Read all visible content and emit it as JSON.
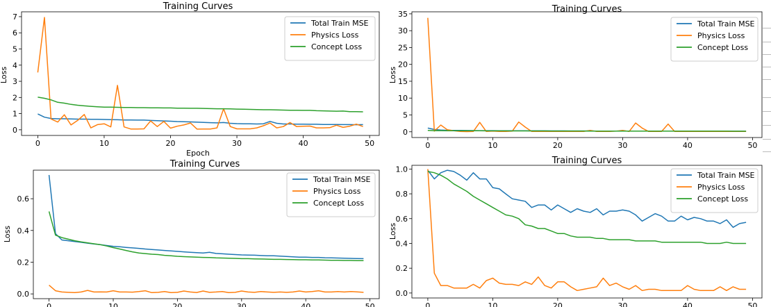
{
  "colors": {
    "train": "#1f77b4",
    "physics": "#ff7f0e",
    "concept": "#2ca02c"
  },
  "chart_data": [
    {
      "type": "line",
      "title": "Training Curves",
      "xlabel": "Epoch",
      "ylabel": "Loss",
      "xlim": [
        -2.45,
        51.45
      ],
      "ylim": [
        -0.35,
        7.3
      ],
      "xticks": [
        0,
        10,
        20,
        30,
        40,
        50
      ],
      "yticks": [
        0,
        1,
        2,
        3,
        4,
        5,
        6,
        7
      ],
      "legend": "top-right",
      "x": [
        0,
        1,
        2,
        3,
        4,
        5,
        6,
        7,
        8,
        9,
        10,
        11,
        12,
        13,
        14,
        15,
        16,
        17,
        18,
        19,
        20,
        21,
        22,
        23,
        24,
        25,
        26,
        27,
        28,
        29,
        30,
        31,
        32,
        33,
        34,
        35,
        36,
        37,
        38,
        39,
        40,
        41,
        42,
        43,
        44,
        45,
        46,
        47,
        48,
        49
      ],
      "series": [
        {
          "name": "Total Train MSE",
          "values": [
            0.98,
            0.78,
            0.7,
            0.68,
            0.68,
            0.67,
            0.66,
            0.66,
            0.65,
            0.65,
            0.64,
            0.63,
            0.62,
            0.61,
            0.61,
            0.6,
            0.6,
            0.58,
            0.56,
            0.55,
            0.53,
            0.51,
            0.5,
            0.49,
            0.47,
            0.46,
            0.44,
            0.43,
            0.45,
            0.4,
            0.38,
            0.37,
            0.37,
            0.36,
            0.37,
            0.52,
            0.4,
            0.36,
            0.36,
            0.35,
            0.35,
            0.34,
            0.34,
            0.33,
            0.33,
            0.33,
            0.32,
            0.32,
            0.31,
            0.32
          ]
        },
        {
          "name": "Physics Loss",
          "values": [
            3.55,
            6.95,
            0.67,
            0.48,
            0.93,
            0.3,
            0.58,
            0.95,
            0.12,
            0.32,
            0.37,
            0.18,
            2.75,
            0.18,
            0.05,
            0.05,
            0.06,
            0.55,
            0.2,
            0.52,
            0.1,
            0.22,
            0.3,
            0.42,
            0.04,
            0.05,
            0.05,
            0.12,
            1.3,
            0.2,
            0.06,
            0.06,
            0.06,
            0.12,
            0.25,
            0.42,
            0.12,
            0.2,
            0.45,
            0.2,
            0.22,
            0.23,
            0.12,
            0.12,
            0.13,
            0.28,
            0.15,
            0.22,
            0.35,
            0.2
          ]
        },
        {
          "name": "Concept Loss",
          "values": [
            2.02,
            1.95,
            1.85,
            1.7,
            1.65,
            1.57,
            1.52,
            1.48,
            1.45,
            1.42,
            1.4,
            1.4,
            1.39,
            1.38,
            1.38,
            1.37,
            1.37,
            1.36,
            1.36,
            1.35,
            1.35,
            1.34,
            1.34,
            1.33,
            1.33,
            1.32,
            1.31,
            1.3,
            1.3,
            1.29,
            1.28,
            1.27,
            1.26,
            1.25,
            1.24,
            1.24,
            1.23,
            1.22,
            1.21,
            1.21,
            1.2,
            1.2,
            1.18,
            1.17,
            1.16,
            1.15,
            1.16,
            1.12,
            1.12,
            1.11
          ]
        }
      ]
    },
    {
      "type": "line",
      "title": "Training Curves",
      "xlabel": "",
      "ylabel": "Loss",
      "xlim": [
        -2.45,
        51.45
      ],
      "ylim": [
        -1.7,
        35.6
      ],
      "xticks": [
        0,
        10,
        20,
        30,
        40,
        50
      ],
      "yticks": [
        0,
        5,
        10,
        15,
        20,
        25,
        30,
        35
      ],
      "legend": "top-right",
      "x": [
        0,
        1,
        2,
        3,
        4,
        5,
        6,
        7,
        8,
        9,
        10,
        11,
        12,
        13,
        14,
        15,
        16,
        17,
        18,
        19,
        20,
        21,
        22,
        23,
        24,
        25,
        26,
        27,
        28,
        29,
        30,
        31,
        32,
        33,
        34,
        35,
        36,
        37,
        38,
        39,
        40,
        41,
        42,
        43,
        44,
        45,
        46,
        47,
        48,
        49
      ],
      "series": [
        {
          "name": "Total Train MSE",
          "values": [
            1.1,
            0.7,
            0.5,
            0.45,
            0.42,
            0.4,
            0.38,
            0.36,
            0.35,
            0.34,
            0.33,
            0.32,
            0.31,
            0.3,
            0.3,
            0.29,
            0.28,
            0.27,
            0.27,
            0.26,
            0.25,
            0.25,
            0.24,
            0.24,
            0.23,
            0.23,
            0.22,
            0.22,
            0.21,
            0.21,
            0.21,
            0.2,
            0.2,
            0.2,
            0.2,
            0.19,
            0.19,
            0.19,
            0.19,
            0.18,
            0.18,
            0.18,
            0.18,
            0.18,
            0.17,
            0.17,
            0.17,
            0.17,
            0.17,
            0.17
          ]
        },
        {
          "name": "Physics Loss",
          "values": [
            33.8,
            0.2,
            2.0,
            0.6,
            0.3,
            0.1,
            0.05,
            0.1,
            2.8,
            0.1,
            0.2,
            0.1,
            0.1,
            0.2,
            2.9,
            1.4,
            0.1,
            0.1,
            0.1,
            0.1,
            0.1,
            0.1,
            0.1,
            0.1,
            0.1,
            0.4,
            0.1,
            0.1,
            0.1,
            0.2,
            0.4,
            0.1,
            2.6,
            1.1,
            0.1,
            0.1,
            0.1,
            2.3,
            0.1,
            0.1,
            0.1,
            0.1,
            0.1,
            0.1,
            0.1,
            0.1,
            0.1,
            0.1,
            0.1,
            0.1
          ]
        },
        {
          "name": "Concept Loss",
          "values": [
            0.4,
            0.35,
            0.33,
            0.32,
            0.31,
            0.3,
            0.3,
            0.29,
            0.29,
            0.28,
            0.28,
            0.27,
            0.27,
            0.26,
            0.26,
            0.26,
            0.25,
            0.25,
            0.25,
            0.24,
            0.24,
            0.24,
            0.23,
            0.23,
            0.23,
            0.22,
            0.22,
            0.22,
            0.22,
            0.21,
            0.21,
            0.21,
            0.21,
            0.21,
            0.2,
            0.2,
            0.2,
            0.2,
            0.2,
            0.2,
            0.19,
            0.19,
            0.19,
            0.19,
            0.19,
            0.19,
            0.19,
            0.18,
            0.18,
            0.18
          ]
        }
      ]
    },
    {
      "type": "line",
      "title": "Training Curves",
      "xlabel": "",
      "ylabel": "Loss",
      "xlim": [
        -2.45,
        51.45
      ],
      "ylim": [
        -0.03,
        0.78
      ],
      "xticks": [
        0,
        10,
        20,
        30,
        40,
        50
      ],
      "yticks": [
        0.0,
        0.2,
        0.4,
        0.6
      ],
      "legend": "top-right",
      "x": [
        0,
        1,
        2,
        3,
        4,
        5,
        6,
        7,
        8,
        9,
        10,
        11,
        12,
        13,
        14,
        15,
        16,
        17,
        18,
        19,
        20,
        21,
        22,
        23,
        24,
        25,
        26,
        27,
        28,
        29,
        30,
        31,
        32,
        33,
        34,
        35,
        36,
        37,
        38,
        39,
        40,
        41,
        42,
        43,
        44,
        45,
        46,
        47,
        48,
        49
      ],
      "series": [
        {
          "name": "Total Train MSE",
          "values": [
            0.75,
            0.38,
            0.34,
            0.335,
            0.33,
            0.325,
            0.32,
            0.315,
            0.31,
            0.305,
            0.3,
            0.297,
            0.293,
            0.29,
            0.287,
            0.283,
            0.28,
            0.277,
            0.274,
            0.271,
            0.268,
            0.265,
            0.262,
            0.26,
            0.258,
            0.262,
            0.255,
            0.253,
            0.25,
            0.248,
            0.246,
            0.245,
            0.244,
            0.242,
            0.24,
            0.24,
            0.238,
            0.236,
            0.234,
            0.232,
            0.232,
            0.23,
            0.23,
            0.228,
            0.227,
            0.226,
            0.225,
            0.224,
            0.223,
            0.222
          ]
        },
        {
          "name": "Physics Loss",
          "values": [
            0.055,
            0.02,
            0.012,
            0.01,
            0.008,
            0.012,
            0.022,
            0.012,
            0.013,
            0.012,
            0.02,
            0.012,
            0.012,
            0.011,
            0.015,
            0.02,
            0.008,
            0.01,
            0.015,
            0.008,
            0.01,
            0.018,
            0.012,
            0.009,
            0.018,
            0.01,
            0.012,
            0.015,
            0.008,
            0.01,
            0.018,
            0.012,
            0.01,
            0.015,
            0.012,
            0.01,
            0.012,
            0.01,
            0.012,
            0.018,
            0.012,
            0.015,
            0.02,
            0.012,
            0.012,
            0.015,
            0.012,
            0.015,
            0.013,
            0.01
          ]
        },
        {
          "name": "Concept Loss",
          "values": [
            0.52,
            0.37,
            0.355,
            0.345,
            0.335,
            0.328,
            0.322,
            0.316,
            0.31,
            0.302,
            0.292,
            0.283,
            0.274,
            0.265,
            0.258,
            0.254,
            0.25,
            0.248,
            0.243,
            0.24,
            0.237,
            0.235,
            0.233,
            0.232,
            0.23,
            0.229,
            0.227,
            0.226,
            0.225,
            0.224,
            0.222,
            0.222,
            0.221,
            0.22,
            0.219,
            0.218,
            0.218,
            0.217,
            0.216,
            0.215,
            0.215,
            0.214,
            0.214,
            0.213,
            0.212,
            0.212,
            0.211,
            0.211,
            0.21,
            0.21
          ]
        }
      ]
    },
    {
      "type": "line",
      "title": "Training Curves",
      "xlabel": "",
      "ylabel": "Loss",
      "xlim": [
        -2.45,
        51.45
      ],
      "ylim": [
        -0.04,
        1.03
      ],
      "xticks": [
        0,
        10,
        20,
        30,
        40,
        50
      ],
      "yticks": [
        0.0,
        0.2,
        0.4,
        0.6,
        0.8,
        1.0
      ],
      "legend": "top-right",
      "x": [
        0,
        1,
        2,
        3,
        4,
        5,
        6,
        7,
        8,
        9,
        10,
        11,
        12,
        13,
        14,
        15,
        16,
        17,
        18,
        19,
        20,
        21,
        22,
        23,
        24,
        25,
        26,
        27,
        28,
        29,
        30,
        31,
        32,
        33,
        34,
        35,
        36,
        37,
        38,
        39,
        40,
        41,
        42,
        43,
        44,
        45,
        46,
        47,
        48,
        49
      ],
      "series": [
        {
          "name": "Total Train MSE",
          "values": [
            0.99,
            0.92,
            0.97,
            0.99,
            0.98,
            0.95,
            0.91,
            0.97,
            0.92,
            0.92,
            0.85,
            0.84,
            0.8,
            0.76,
            0.75,
            0.74,
            0.69,
            0.71,
            0.71,
            0.67,
            0.71,
            0.68,
            0.65,
            0.68,
            0.66,
            0.65,
            0.68,
            0.63,
            0.66,
            0.66,
            0.67,
            0.66,
            0.63,
            0.58,
            0.61,
            0.64,
            0.62,
            0.58,
            0.58,
            0.62,
            0.59,
            0.61,
            0.6,
            0.58,
            0.58,
            0.56,
            0.59,
            0.53,
            0.56,
            0.57
          ]
        },
        {
          "name": "Physics Loss",
          "values": [
            1.0,
            0.16,
            0.06,
            0.06,
            0.04,
            0.04,
            0.04,
            0.07,
            0.04,
            0.1,
            0.12,
            0.08,
            0.07,
            0.07,
            0.06,
            0.09,
            0.07,
            0.13,
            0.06,
            0.04,
            0.09,
            0.09,
            0.05,
            0.02,
            0.03,
            0.04,
            0.05,
            0.12,
            0.06,
            0.08,
            0.05,
            0.03,
            0.06,
            0.02,
            0.03,
            0.03,
            0.02,
            0.02,
            0.02,
            0.02,
            0.06,
            0.03,
            0.02,
            0.02,
            0.02,
            0.05,
            0.02,
            0.05,
            0.03,
            0.03
          ]
        },
        {
          "name": "Concept Loss",
          "values": [
            0.98,
            0.97,
            0.95,
            0.92,
            0.88,
            0.85,
            0.82,
            0.78,
            0.75,
            0.72,
            0.69,
            0.66,
            0.63,
            0.62,
            0.6,
            0.55,
            0.54,
            0.52,
            0.52,
            0.5,
            0.48,
            0.48,
            0.46,
            0.45,
            0.45,
            0.45,
            0.44,
            0.44,
            0.43,
            0.43,
            0.43,
            0.43,
            0.42,
            0.42,
            0.42,
            0.42,
            0.41,
            0.41,
            0.41,
            0.41,
            0.41,
            0.41,
            0.41,
            0.4,
            0.4,
            0.4,
            0.41,
            0.4,
            0.4,
            0.4
          ]
        }
      ]
    }
  ]
}
